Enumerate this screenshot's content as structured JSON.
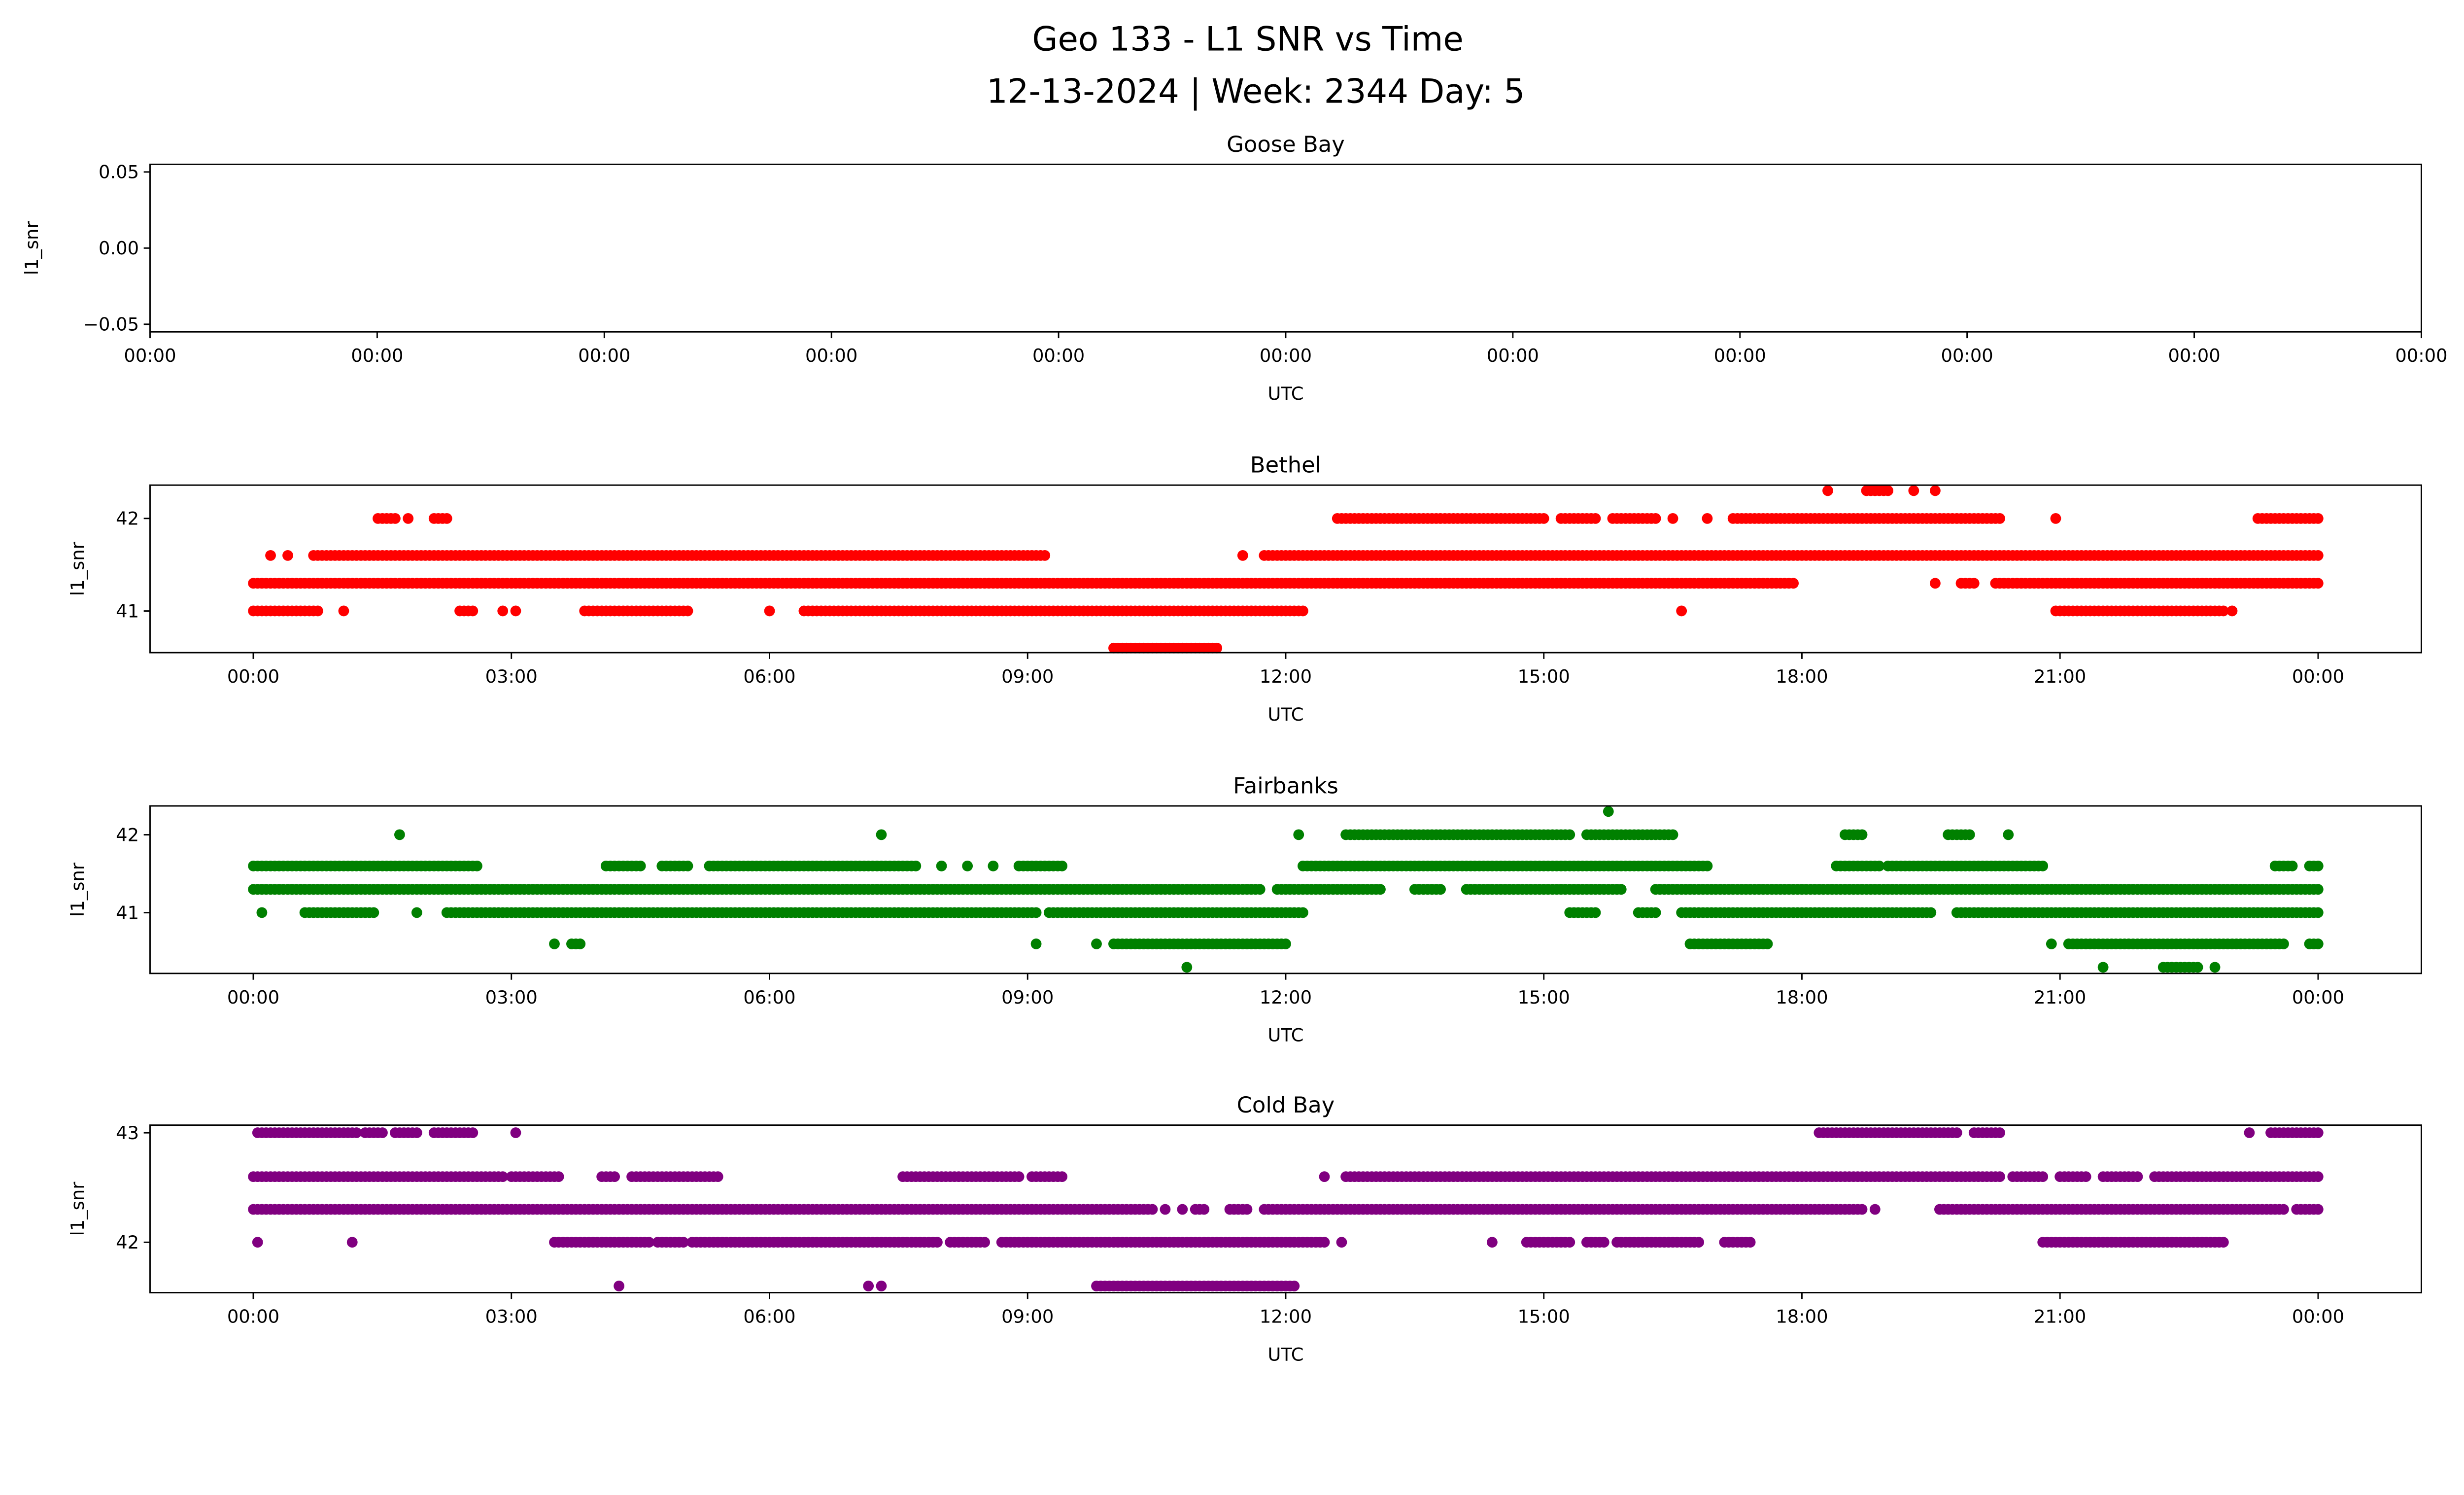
{
  "chart_data": {
    "title_line1": "Geo 133 - L1 SNR vs Time",
    "title_line2": "12-13-2024 | Week: 2344 Day: 5",
    "type": "scatter",
    "subplots": [
      {
        "title": "Goose Bay",
        "xlabel": "UTC",
        "ylabel": "l1_snr",
        "color": "#ff0000",
        "ylim": [
          -0.055,
          0.055
        ],
        "yticks": [
          {
            "v": 0.05,
            "label": "0.05"
          },
          {
            "v": 0.0,
            "label": "0.00"
          },
          {
            "v": -0.05,
            "label": "−0.05"
          }
        ],
        "xlim": [
          0,
          10
        ],
        "xticks": [
          {
            "v": 0,
            "label": "00:00"
          },
          {
            "v": 1,
            "label": "00:00"
          },
          {
            "v": 2,
            "label": "00:00"
          },
          {
            "v": 3,
            "label": "00:00"
          },
          {
            "v": 4,
            "label": "00:00"
          },
          {
            "v": 5,
            "label": "00:00"
          },
          {
            "v": 6,
            "label": "00:00"
          },
          {
            "v": 7,
            "label": "00:00"
          },
          {
            "v": 8,
            "label": "00:00"
          },
          {
            "v": 9,
            "label": "00:00"
          },
          {
            "v": 10,
            "label": "00:00"
          }
        ],
        "runs": []
      },
      {
        "title": "Bethel",
        "xlabel": "UTC",
        "ylabel": "l1_snr",
        "color": "#ff0000",
        "ylim": [
          40.55,
          42.36
        ],
        "yticks": [
          {
            "v": 42,
            "label": "42"
          },
          {
            "v": 41,
            "label": "41"
          }
        ],
        "xlim": [
          -1.2,
          25.2
        ],
        "xticks": [
          {
            "v": 0,
            "label": "00:00"
          },
          {
            "v": 3,
            "label": "03:00"
          },
          {
            "v": 6,
            "label": "06:00"
          },
          {
            "v": 9,
            "label": "09:00"
          },
          {
            "v": 12,
            "label": "12:00"
          },
          {
            "v": 15,
            "label": "15:00"
          },
          {
            "v": 18,
            "label": "18:00"
          },
          {
            "v": 21,
            "label": "21:00"
          },
          {
            "v": 24,
            "label": "00:00"
          }
        ],
        "runs": [
          {
            "y": 42.3,
            "ranges": [
              [
                18.3,
                18.3
              ],
              [
                18.75,
                19.0
              ],
              [
                19.3,
                19.3
              ],
              [
                19.55,
                19.55
              ]
            ]
          },
          {
            "y": 42.0,
            "ranges": [
              [
                1.45,
                1.65
              ],
              [
                1.8,
                1.8
              ],
              [
                2.1,
                2.25
              ],
              [
                12.6,
                15.0
              ],
              [
                15.2,
                15.6
              ],
              [
                15.8,
                16.3
              ],
              [
                16.5,
                16.5
              ],
              [
                16.9,
                16.9
              ],
              [
                17.2,
                20.3
              ],
              [
                20.95,
                20.95
              ],
              [
                23.3,
                24.0
              ]
            ]
          },
          {
            "y": 41.6,
            "ranges": [
              [
                0.2,
                0.2
              ],
              [
                0.4,
                0.4
              ],
              [
                0.7,
                9.2
              ],
              [
                11.5,
                11.5
              ],
              [
                11.75,
                24.0
              ]
            ]
          },
          {
            "y": 41.3,
            "ranges": [
              [
                0,
                17.9
              ],
              [
                19.55,
                19.55
              ],
              [
                19.85,
                20.0
              ],
              [
                20.25,
                24.0
              ]
            ]
          },
          {
            "y": 41.0,
            "ranges": [
              [
                0,
                0.75
              ],
              [
                1.05,
                1.05
              ],
              [
                2.4,
                2.55
              ],
              [
                2.9,
                2.9
              ],
              [
                3.05,
                3.05
              ],
              [
                3.85,
                5.05
              ],
              [
                6.0,
                6.0
              ],
              [
                6.4,
                12.2
              ],
              [
                16.6,
                16.6
              ],
              [
                20.95,
                22.9
              ],
              [
                23.0,
                23.0
              ]
            ]
          },
          {
            "y": 40.6,
            "ranges": [
              [
                10.0,
                11.2
              ]
            ]
          }
        ]
      },
      {
        "title": "Fairbanks",
        "xlabel": "UTC",
        "ylabel": "l1_snr",
        "color": "#008000",
        "ylim": [
          40.22,
          42.37
        ],
        "yticks": [
          {
            "v": 42,
            "label": "42"
          },
          {
            "v": 41,
            "label": "41"
          }
        ],
        "xlim": [
          -1.2,
          25.2
        ],
        "xticks": [
          {
            "v": 0,
            "label": "00:00"
          },
          {
            "v": 3,
            "label": "03:00"
          },
          {
            "v": 6,
            "label": "06:00"
          },
          {
            "v": 9,
            "label": "09:00"
          },
          {
            "v": 12,
            "label": "12:00"
          },
          {
            "v": 15,
            "label": "15:00"
          },
          {
            "v": 18,
            "label": "18:00"
          },
          {
            "v": 21,
            "label": "21:00"
          },
          {
            "v": 24,
            "label": "00:00"
          }
        ],
        "runs": [
          {
            "y": 42.3,
            "ranges": [
              [
                15.75,
                15.75
              ]
            ]
          },
          {
            "y": 42.0,
            "ranges": [
              [
                1.7,
                1.7
              ],
              [
                7.3,
                7.3
              ],
              [
                12.15,
                12.15
              ],
              [
                12.7,
                15.3
              ],
              [
                15.5,
                16.5
              ],
              [
                18.5,
                18.7
              ],
              [
                19.7,
                19.95
              ],
              [
                20.4,
                20.4
              ]
            ]
          },
          {
            "y": 41.6,
            "ranges": [
              [
                0,
                2.6
              ],
              [
                4.1,
                4.5
              ],
              [
                4.75,
                5.05
              ],
              [
                5.3,
                7.7
              ],
              [
                8.0,
                8.0
              ],
              [
                8.3,
                8.3
              ],
              [
                8.6,
                8.6
              ],
              [
                8.9,
                9.4
              ],
              [
                12.2,
                16.9
              ],
              [
                18.4,
                18.9
              ],
              [
                19.0,
                20.8
              ],
              [
                23.5,
                23.7
              ],
              [
                23.9,
                24.0
              ]
            ]
          },
          {
            "y": 41.3,
            "ranges": [
              [
                0,
                11.7
              ],
              [
                11.9,
                13.1
              ],
              [
                13.5,
                13.8
              ],
              [
                14.1,
                15.9
              ],
              [
                16.3,
                24.0
              ]
            ]
          },
          {
            "y": 41.0,
            "ranges": [
              [
                0.1,
                0.1
              ],
              [
                0.6,
                1.4
              ],
              [
                1.9,
                1.9
              ],
              [
                2.25,
                9.1
              ],
              [
                9.25,
                12.2
              ],
              [
                15.3,
                15.6
              ],
              [
                16.1,
                16.3
              ],
              [
                16.6,
                19.5
              ],
              [
                19.8,
                24.0
              ]
            ]
          },
          {
            "y": 40.6,
            "ranges": [
              [
                3.5,
                3.5
              ],
              [
                3.7,
                3.8
              ],
              [
                9.1,
                9.1
              ],
              [
                9.8,
                9.8
              ],
              [
                10.0,
                12.0
              ],
              [
                16.7,
                17.6
              ],
              [
                20.9,
                20.9
              ],
              [
                21.1,
                23.6
              ],
              [
                23.9,
                24.0
              ]
            ]
          },
          {
            "y": 40.3,
            "ranges": [
              [
                10.85,
                10.85
              ],
              [
                21.5,
                21.5
              ],
              [
                22.2,
                22.6
              ],
              [
                22.8,
                22.8
              ]
            ]
          }
        ]
      },
      {
        "title": "Cold Bay",
        "xlabel": "UTC",
        "ylabel": "l1_snr",
        "color": "#800080",
        "ylim": [
          41.54,
          43.07
        ],
        "yticks": [
          {
            "v": 43,
            "label": "43"
          },
          {
            "v": 42,
            "label": "42"
          }
        ],
        "xlim": [
          -1.2,
          25.2
        ],
        "xticks": [
          {
            "v": 0,
            "label": "00:00"
          },
          {
            "v": 3,
            "label": "03:00"
          },
          {
            "v": 6,
            "label": "06:00"
          },
          {
            "v": 9,
            "label": "09:00"
          },
          {
            "v": 12,
            "label": "12:00"
          },
          {
            "v": 15,
            "label": "15:00"
          },
          {
            "v": 18,
            "label": "18:00"
          },
          {
            "v": 21,
            "label": "21:00"
          },
          {
            "v": 24,
            "label": "00:00"
          }
        ],
        "runs": [
          {
            "y": 43.0,
            "ranges": [
              [
                0.05,
                1.2
              ],
              [
                1.3,
                1.5
              ],
              [
                1.65,
                1.9
              ],
              [
                2.1,
                2.55
              ],
              [
                3.05,
                3.05
              ],
              [
                18.2,
                19.8
              ],
              [
                20.0,
                20.3
              ],
              [
                23.2,
                23.2
              ],
              [
                23.45,
                24.0
              ]
            ]
          },
          {
            "y": 42.6,
            "ranges": [
              [
                0,
                2.9
              ],
              [
                3.0,
                3.55
              ],
              [
                4.05,
                4.2
              ],
              [
                4.4,
                5.4
              ],
              [
                7.55,
                8.9
              ],
              [
                9.05,
                9.4
              ],
              [
                12.45,
                12.45
              ],
              [
                12.7,
                20.3
              ],
              [
                20.45,
                20.8
              ],
              [
                21.0,
                21.3
              ],
              [
                21.5,
                21.9
              ],
              [
                22.1,
                24.0
              ]
            ]
          },
          {
            "y": 42.3,
            "ranges": [
              [
                0,
                10.45
              ],
              [
                10.6,
                10.6
              ],
              [
                10.8,
                10.8
              ],
              [
                10.95,
                11.05
              ],
              [
                11.35,
                11.55
              ],
              [
                11.75,
                18.7
              ],
              [
                18.85,
                18.85
              ],
              [
                19.6,
                23.6
              ],
              [
                23.75,
                24.0
              ]
            ]
          },
          {
            "y": 42.0,
            "ranges": [
              [
                0.05,
                0.05
              ],
              [
                1.15,
                1.15
              ],
              [
                3.5,
                4.6
              ],
              [
                4.7,
                5.0
              ],
              [
                5.1,
                7.95
              ],
              [
                8.1,
                8.5
              ],
              [
                8.7,
                12.45
              ],
              [
                12.65,
                12.65
              ],
              [
                14.4,
                14.4
              ],
              [
                14.8,
                15.3
              ],
              [
                15.5,
                15.7
              ],
              [
                15.85,
                16.8
              ],
              [
                17.1,
                17.4
              ],
              [
                20.8,
                22.9
              ]
            ]
          },
          {
            "y": 41.6,
            "ranges": [
              [
                4.25,
                4.25
              ],
              [
                7.15,
                7.15
              ],
              [
                7.3,
                7.3
              ],
              [
                9.8,
                12.1
              ]
            ]
          }
        ]
      }
    ]
  }
}
